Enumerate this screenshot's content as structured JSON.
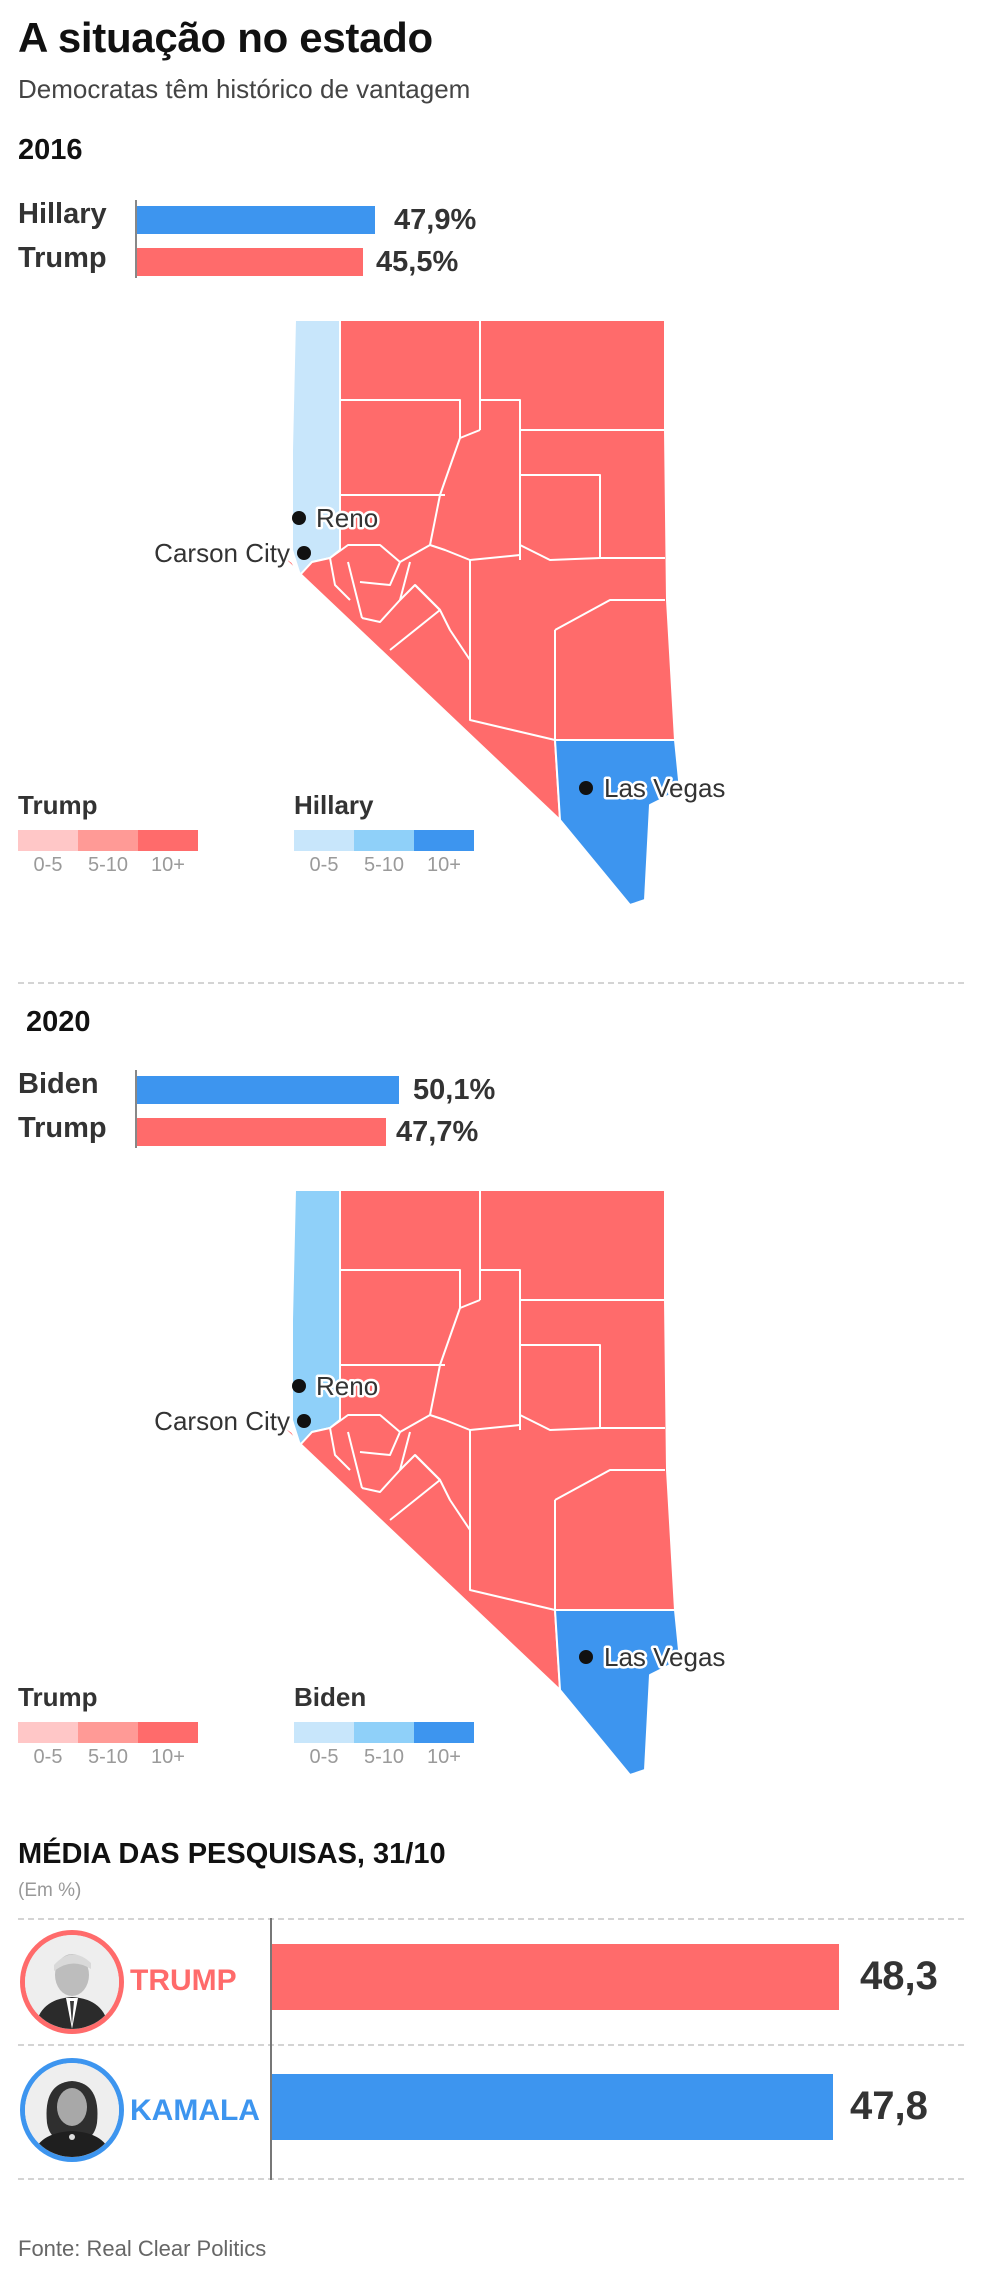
{
  "header": {
    "title": "A situação no estado",
    "subtitle": "Democratas têm histórico de vantagem"
  },
  "elections": [
    {
      "year": "2016",
      "candidates": [
        {
          "name": "Hillary",
          "pct_label": "47,9%",
          "pct": 47.9,
          "party": "dem"
        },
        {
          "name": "Trump",
          "pct_label": "45,5%",
          "pct": 45.5,
          "party": "rep"
        }
      ],
      "cities": [
        "Reno",
        "Carson City",
        "Las Vegas"
      ],
      "legend": {
        "rep_title": "Trump",
        "dem_title": "Hillary",
        "ticks": [
          "0-5",
          "5-10",
          "10+"
        ]
      }
    },
    {
      "year": "2020",
      "candidates": [
        {
          "name": "Biden",
          "pct_label": "50,1%",
          "pct": 50.1,
          "party": "dem"
        },
        {
          "name": "Trump",
          "pct_label": "47,7%",
          "pct": 47.7,
          "party": "rep"
        }
      ],
      "cities": [
        "Reno",
        "Carson City",
        "Las Vegas"
      ],
      "legend": {
        "rep_title": "Trump",
        "dem_title": "Biden",
        "ticks": [
          "0-5",
          "5-10",
          "10+"
        ]
      }
    }
  ],
  "polls": {
    "title": "MÉDIA DAS PESQUISAS, 31/10",
    "subtitle": "(Em %)",
    "rows": [
      {
        "name": "TRUMP",
        "value_label": "48,3",
        "value": 48.3,
        "party": "rep"
      },
      {
        "name": "KAMALA",
        "value_label": "47,8",
        "value": 47.8,
        "party": "dem"
      }
    ]
  },
  "source": "Fonte: Real Clear Politics",
  "colors": {
    "rep": "#ff6b6b",
    "rep_light": "#ffc7c7",
    "rep_mid": "#ff9a96",
    "dem": "#3d95ef",
    "dem_light": "#c8e6fb",
    "dem_mid": "#8fd0f9"
  },
  "map_shading": [
    {
      "year": "2016",
      "washoe": "dem_light",
      "clark": "dem",
      "other_counties": "rep"
    },
    {
      "year": "2020",
      "washoe": "dem_mid",
      "clark": "dem",
      "other_counties": "rep"
    }
  ]
}
